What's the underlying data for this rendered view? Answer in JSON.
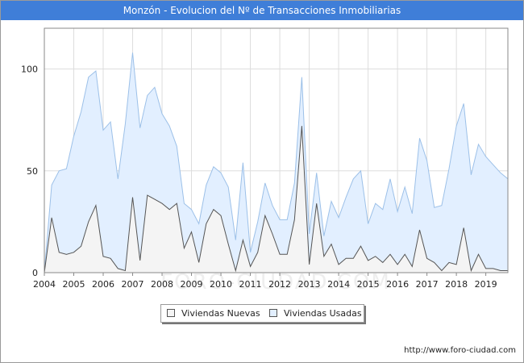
{
  "title": "Monzón - Evolucion del Nº de Transacciones Inmobiliarias",
  "footer_url": "http://www.foro-ciudad.com",
  "watermark": "FORO-CIUDAD.COM",
  "colors": {
    "header": "#3f7ed8",
    "nuevas_fill": "#f4f4f4",
    "nuevas_line": "#555555",
    "usadas_fill": "#e2efff",
    "usadas_line": "#9cc0e8"
  },
  "legend": {
    "nuevas": "Viviendas Nuevas",
    "usadas": "Viviendas Usadas"
  },
  "chart_data": {
    "type": "area",
    "title": "Monzón - Evolucion del Nº de Transacciones Inmobiliarias",
    "xlim": [
      2004,
      2019.75
    ],
    "ylim": [
      0,
      120
    ],
    "grid": true,
    "legend_position": "bottom",
    "x_ticks": [
      "2004",
      "2005",
      "2006",
      "2007",
      "2008",
      "2009",
      "2010",
      "2011",
      "2012",
      "2013",
      "2014",
      "2015",
      "2016",
      "2017",
      "2018",
      "2019"
    ],
    "y_ticks": [
      0,
      50,
      100
    ],
    "x": [
      2004,
      2004.25,
      2004.5,
      2004.75,
      2005,
      2005.25,
      2005.5,
      2005.75,
      2006,
      2006.25,
      2006.5,
      2006.75,
      2007,
      2007.25,
      2007.5,
      2007.75,
      2008,
      2008.25,
      2008.5,
      2008.75,
      2009,
      2009.25,
      2009.5,
      2009.75,
      2010,
      2010.25,
      2010.5,
      2010.75,
      2011,
      2011.25,
      2011.5,
      2011.75,
      2012,
      2012.25,
      2012.5,
      2012.75,
      2013,
      2013.25,
      2013.5,
      2013.75,
      2014,
      2014.25,
      2014.5,
      2014.75,
      2015,
      2015.25,
      2015.5,
      2015.75,
      2016,
      2016.25,
      2016.5,
      2016.75,
      2017,
      2017.25,
      2017.5,
      2017.75,
      2018,
      2018.25,
      2018.5,
      2018.75,
      2019,
      2019.25,
      2019.5,
      2019.75
    ],
    "series": [
      {
        "name": "Viviendas Nuevas",
        "values": [
          0,
          27,
          10,
          9,
          10,
          13,
          25,
          33,
          8,
          7,
          2,
          1,
          37,
          6,
          38,
          36,
          34,
          31,
          34,
          12,
          20,
          5,
          24,
          31,
          28,
          14,
          1,
          16,
          3,
          10,
          28,
          19,
          9,
          9,
          26,
          72,
          4,
          34,
          8,
          14,
          4,
          7,
          7,
          13,
          6,
          8,
          5,
          9,
          4,
          9,
          3,
          21,
          7,
          5,
          1,
          5,
          4,
          22,
          1,
          9,
          2,
          2,
          1,
          1
        ]
      },
      {
        "name": "Viviendas Usadas",
        "values": [
          0,
          43,
          50,
          51,
          67,
          79,
          96,
          99,
          70,
          74,
          46,
          73,
          108,
          71,
          87,
          91,
          78,
          72,
          62,
          34,
          31,
          24,
          43,
          52,
          49,
          42,
          16,
          54,
          10,
          25,
          44,
          33,
          26,
          26,
          44,
          96,
          19,
          49,
          18,
          35,
          27,
          37,
          46,
          50,
          24,
          34,
          31,
          46,
          30,
          42,
          29,
          66,
          55,
          32,
          33,
          51,
          72,
          83,
          48,
          63,
          57,
          53,
          49,
          46
        ]
      }
    ]
  }
}
